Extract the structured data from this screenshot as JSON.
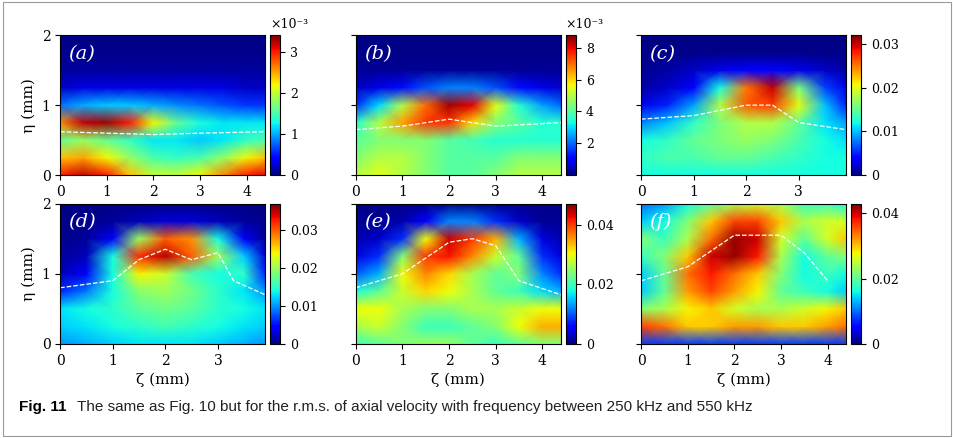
{
  "chart_data": [
    {
      "type": "heatmap",
      "panel": "(a)",
      "ylabel": "η (mm)",
      "x": [
        0,
        0.5,
        1,
        1.5,
        2,
        2.5,
        3,
        3.5,
        4,
        4.4
      ],
      "y": [
        0,
        0.25,
        0.5,
        0.75,
        1.0,
        1.25,
        1.5,
        1.75,
        2.0
      ],
      "cells": [
        [
          0.003,
          0.0032,
          0.003,
          0.0024,
          0.002,
          0.002,
          0.0022,
          0.0026,
          0.003,
          0.0031
        ],
        [
          0.0024,
          0.0025,
          0.0022,
          0.0018,
          0.0015,
          0.0014,
          0.0015,
          0.0018,
          0.0022,
          0.0024
        ],
        [
          0.0016,
          0.0018,
          0.0016,
          0.0014,
          0.0012,
          0.0012,
          0.0011,
          0.0012,
          0.0014,
          0.0015
        ],
        [
          0.0026,
          0.0032,
          0.0033,
          0.003,
          0.0022,
          0.0016,
          0.0013,
          0.0012,
          0.0012,
          0.0012
        ],
        [
          0.0008,
          0.001,
          0.0011,
          0.0011,
          0.001,
          0.0009,
          0.0008,
          0.0007,
          0.0006,
          0.0006
        ],
        [
          0.0002,
          0.0003,
          0.0003,
          0.0003,
          0.0003,
          0.0003,
          0.0003,
          0.0003,
          0.0002,
          0.0002
        ],
        [
          0.0001,
          0.0001,
          0.0001,
          0.0001,
          0.0001,
          0.0001,
          0.0001,
          0.0001,
          0.0001,
          0.0001
        ],
        [
          5e-05,
          5e-05,
          5e-05,
          5e-05,
          5e-05,
          5e-05,
          5e-05,
          5e-05,
          5e-05,
          5e-05
        ],
        [
          2e-05,
          2e-05,
          2e-05,
          2e-05,
          2e-05,
          2e-05,
          2e-05,
          2e-05,
          2e-05,
          2e-05
        ]
      ],
      "xlim": [
        0,
        4.4
      ],
      "ylim": [
        0,
        2
      ],
      "xticks": [
        0,
        1,
        2,
        3,
        4
      ],
      "yticks": [
        0,
        1,
        2
      ],
      "colorbar": {
        "lim": [
          0,
          0.0034
        ],
        "multiplier": "×10⁻³",
        "ticks": [
          {
            "value": 0,
            "label": "0"
          },
          {
            "value": 0.001,
            "label": "1"
          },
          {
            "value": 0.002,
            "label": "2"
          },
          {
            "value": 0.003,
            "label": "3"
          }
        ]
      },
      "contour": {
        "x": [
          0,
          1,
          2,
          3,
          4.4
        ],
        "y": [
          0.62,
          0.6,
          0.58,
          0.6,
          0.62
        ]
      }
    },
    {
      "type": "heatmap",
      "panel": "(b)",
      "tick_labels": "x",
      "x": [
        0,
        0.5,
        1,
        1.5,
        2,
        2.5,
        3,
        3.5,
        4,
        4.4
      ],
      "y": [
        0,
        0.25,
        0.5,
        0.75,
        1.0,
        1.25,
        1.5,
        1.75,
        2.0
      ],
      "cells": [
        [
          0.005,
          0.0055,
          0.005,
          0.0045,
          0.004,
          0.004,
          0.0045,
          0.005,
          0.005,
          0.005
        ],
        [
          0.0045,
          0.005,
          0.005,
          0.0045,
          0.004,
          0.004,
          0.004,
          0.0045,
          0.0045,
          0.0045
        ],
        [
          0.004,
          0.0045,
          0.0045,
          0.0045,
          0.004,
          0.0038,
          0.0035,
          0.0035,
          0.0035,
          0.0035
        ],
        [
          0.0035,
          0.005,
          0.0065,
          0.0075,
          0.0075,
          0.006,
          0.0045,
          0.004,
          0.0035,
          0.0035
        ],
        [
          0.0015,
          0.003,
          0.005,
          0.007,
          0.0085,
          0.008,
          0.0055,
          0.0035,
          0.0025,
          0.002
        ],
        [
          0.0005,
          0.0008,
          0.0012,
          0.0018,
          0.0022,
          0.0022,
          0.0018,
          0.0012,
          0.0008,
          0.0006
        ],
        [
          0.0002,
          0.0002,
          0.0002,
          0.0002,
          0.0002,
          0.0002,
          0.0002,
          0.0002,
          0.0002,
          0.0002
        ],
        [
          0.0001,
          0.0001,
          0.0001,
          0.0001,
          0.0001,
          0.0001,
          0.0001,
          0.0001,
          0.0001,
          0.0001
        ],
        [
          5e-05,
          5e-05,
          5e-05,
          5e-05,
          5e-05,
          5e-05,
          5e-05,
          5e-05,
          5e-05,
          5e-05
        ]
      ],
      "xlim": [
        0,
        4.4
      ],
      "ylim": [
        0,
        2
      ],
      "xticks": [
        0,
        1,
        2,
        3,
        4
      ],
      "yticks": [
        0,
        1,
        2
      ],
      "colorbar": {
        "lim": [
          0,
          0.0088
        ],
        "multiplier": "×10⁻³",
        "ticks": [
          {
            "value": 0.002,
            "label": "2"
          },
          {
            "value": 0.004,
            "label": "4"
          },
          {
            "value": 0.006,
            "label": "6"
          },
          {
            "value": 0.008,
            "label": "8"
          }
        ]
      },
      "contour": {
        "x": [
          0,
          1,
          2,
          3,
          4.4
        ],
        "y": [
          0.65,
          0.7,
          0.8,
          0.7,
          0.75
        ]
      }
    },
    {
      "type": "heatmap",
      "panel": "(c)",
      "tick_labels": "x",
      "x": [
        0,
        0.5,
        1,
        1.5,
        2,
        2.5,
        3,
        3.5,
        3.9
      ],
      "y": [
        0,
        0.25,
        0.5,
        0.75,
        1.0,
        1.25,
        1.5,
        1.75,
        2.0
      ],
      "cells": [
        [
          0.012,
          0.012,
          0.012,
          0.012,
          0.012,
          0.012,
          0.012,
          0.012,
          0.012
        ],
        [
          0.013,
          0.014,
          0.014,
          0.015,
          0.015,
          0.014,
          0.013,
          0.012,
          0.012
        ],
        [
          0.012,
          0.013,
          0.015,
          0.016,
          0.017,
          0.016,
          0.014,
          0.012,
          0.011
        ],
        [
          0.008,
          0.01,
          0.013,
          0.016,
          0.018,
          0.018,
          0.015,
          0.011,
          0.009
        ],
        [
          0.003,
          0.005,
          0.009,
          0.018,
          0.026,
          0.027,
          0.02,
          0.01,
          0.005
        ],
        [
          0.001,
          0.002,
          0.004,
          0.012,
          0.025,
          0.03,
          0.016,
          0.006,
          0.003
        ],
        [
          0.0005,
          0.001,
          0.002,
          0.003,
          0.004,
          0.004,
          0.003,
          0.002,
          0.001
        ],
        [
          0.0003,
          0.0003,
          0.0003,
          0.0003,
          0.0003,
          0.0003,
          0.0003,
          0.0003,
          0.0003
        ],
        [
          0.0002,
          0.0002,
          0.0002,
          0.0002,
          0.0002,
          0.0002,
          0.0002,
          0.0002,
          0.0002
        ]
      ],
      "xlim": [
        0,
        3.9
      ],
      "ylim": [
        0,
        2
      ],
      "xticks": [
        0,
        1,
        2,
        3
      ],
      "yticks": [
        0,
        1,
        2
      ],
      "colorbar": {
        "lim": [
          0,
          0.032
        ],
        "ticks": [
          0,
          0.01,
          0.02,
          0.03
        ]
      },
      "contour": {
        "x": [
          0,
          1,
          2,
          2.5,
          3,
          3.9
        ],
        "y": [
          0.8,
          0.85,
          1.0,
          1.0,
          0.75,
          0.65
        ]
      }
    },
    {
      "type": "heatmap",
      "panel": "(d)",
      "xlabel": "ζ (mm)",
      "ylabel": "η (mm)",
      "x": [
        0,
        0.5,
        1,
        1.5,
        2,
        2.5,
        3,
        3.5,
        3.9
      ],
      "y": [
        0,
        0.25,
        0.5,
        0.75,
        1.0,
        1.25,
        1.5,
        1.75,
        2.0
      ],
      "cells": [
        [
          0.01,
          0.011,
          0.012,
          0.013,
          0.013,
          0.013,
          0.012,
          0.011,
          0.01
        ],
        [
          0.012,
          0.013,
          0.014,
          0.015,
          0.016,
          0.015,
          0.014,
          0.013,
          0.012
        ],
        [
          0.013,
          0.014,
          0.015,
          0.017,
          0.018,
          0.017,
          0.015,
          0.014,
          0.013
        ],
        [
          0.006,
          0.009,
          0.014,
          0.019,
          0.02,
          0.018,
          0.015,
          0.013,
          0.01
        ],
        [
          0.002,
          0.004,
          0.014,
          0.024,
          0.022,
          0.016,
          0.014,
          0.015,
          0.006
        ],
        [
          0.001,
          0.002,
          0.014,
          0.032,
          0.035,
          0.03,
          0.02,
          0.012,
          0.003
        ],
        [
          0.0005,
          0.001,
          0.004,
          0.02,
          0.03,
          0.028,
          0.014,
          0.004,
          0.001
        ],
        [
          0.0003,
          0.0005,
          0.001,
          0.002,
          0.003,
          0.003,
          0.002,
          0.001,
          0.0005
        ],
        [
          0.0002,
          0.0002,
          0.0002,
          0.0002,
          0.0002,
          0.0002,
          0.0002,
          0.0002,
          0.0002
        ]
      ],
      "xlim": [
        0,
        3.9
      ],
      "ylim": [
        0,
        2
      ],
      "xticks": [
        0,
        1,
        2,
        3
      ],
      "yticks": [
        0,
        1,
        2
      ],
      "colorbar": {
        "lim": [
          0,
          0.037
        ],
        "ticks": [
          0,
          0.01,
          0.02,
          0.03
        ]
      },
      "contour": {
        "x": [
          0,
          1,
          1.5,
          2,
          2.5,
          3,
          3.3,
          3.9
        ],
        "y": [
          0.8,
          0.9,
          1.2,
          1.35,
          1.2,
          1.3,
          0.9,
          0.7
        ]
      }
    },
    {
      "type": "heatmap",
      "panel": "(e)",
      "xlabel": "ζ (mm)",
      "tick_labels": "x",
      "x": [
        0,
        0.5,
        1,
        1.5,
        2,
        2.5,
        3,
        3.5,
        4,
        4.4
      ],
      "y": [
        0,
        0.25,
        0.5,
        0.75,
        1.0,
        1.25,
        1.5,
        1.75,
        2.0
      ],
      "cells": [
        [
          0.02,
          0.022,
          0.024,
          0.025,
          0.025,
          0.022,
          0.02,
          0.022,
          0.024,
          0.024
        ],
        [
          0.026,
          0.028,
          0.024,
          0.02,
          0.02,
          0.022,
          0.024,
          0.03,
          0.034,
          0.034
        ],
        [
          0.03,
          0.03,
          0.026,
          0.024,
          0.024,
          0.026,
          0.026,
          0.028,
          0.03,
          0.03
        ],
        [
          0.018,
          0.022,
          0.028,
          0.032,
          0.03,
          0.026,
          0.022,
          0.02,
          0.016,
          0.014
        ],
        [
          0.01,
          0.014,
          0.03,
          0.036,
          0.032,
          0.026,
          0.022,
          0.024,
          0.012,
          0.008
        ],
        [
          0.004,
          0.008,
          0.024,
          0.04,
          0.042,
          0.036,
          0.028,
          0.022,
          0.008,
          0.004
        ],
        [
          0.002,
          0.003,
          0.008,
          0.03,
          0.044,
          0.04,
          0.034,
          0.014,
          0.004,
          0.002
        ],
        [
          0.001,
          0.001,
          0.002,
          0.006,
          0.012,
          0.012,
          0.008,
          0.003,
          0.001,
          0.001
        ],
        [
          0.0005,
          0.0005,
          0.0005,
          0.0005,
          0.0005,
          0.0005,
          0.0005,
          0.0005,
          0.0005,
          0.0005
        ]
      ],
      "xlim": [
        0,
        4.4
      ],
      "ylim": [
        0,
        2
      ],
      "xticks": [
        0,
        1,
        2,
        3,
        4
      ],
      "yticks": [
        0,
        1,
        2
      ],
      "colorbar": {
        "lim": [
          0,
          0.047
        ],
        "ticks": [
          0,
          0.02,
          0.04
        ]
      },
      "contour": {
        "x": [
          0,
          1,
          2,
          2.5,
          3,
          3.5,
          4.4
        ],
        "y": [
          0.8,
          1.0,
          1.45,
          1.5,
          1.4,
          0.9,
          0.7
        ]
      }
    },
    {
      "type": "heatmap",
      "panel": "(f)",
      "xlabel": "ζ (mm)",
      "tick_labels": "x",
      "x": [
        0,
        0.5,
        1,
        1.5,
        2,
        2.5,
        3,
        3.5,
        4,
        4.4
      ],
      "y": [
        0,
        0.25,
        0.5,
        0.75,
        1.0,
        1.25,
        1.5,
        1.75,
        2.0
      ],
      "cells": [
        [
          0.008,
          0.008,
          0.008,
          0.008,
          0.008,
          0.008,
          0.008,
          0.008,
          0.008,
          0.008
        ],
        [
          0.036,
          0.034,
          0.03,
          0.03,
          0.032,
          0.032,
          0.03,
          0.03,
          0.032,
          0.034
        ],
        [
          0.022,
          0.024,
          0.028,
          0.03,
          0.026,
          0.024,
          0.024,
          0.026,
          0.028,
          0.03
        ],
        [
          0.014,
          0.02,
          0.032,
          0.036,
          0.032,
          0.028,
          0.02,
          0.018,
          0.016,
          0.014
        ],
        [
          0.014,
          0.02,
          0.034,
          0.038,
          0.034,
          0.03,
          0.022,
          0.016,
          0.018,
          0.016
        ],
        [
          0.018,
          0.022,
          0.03,
          0.04,
          0.042,
          0.038,
          0.024,
          0.016,
          0.02,
          0.022
        ],
        [
          0.022,
          0.018,
          0.024,
          0.034,
          0.042,
          0.04,
          0.026,
          0.02,
          0.026,
          0.03
        ],
        [
          0.014,
          0.016,
          0.022,
          0.03,
          0.036,
          0.036,
          0.03,
          0.024,
          0.026,
          0.026
        ],
        [
          0.01,
          0.012,
          0.016,
          0.02,
          0.024,
          0.026,
          0.024,
          0.018,
          0.018,
          0.016
        ]
      ],
      "xlim": [
        0,
        4.4
      ],
      "ylim": [
        0,
        2
      ],
      "xticks": [
        0,
        1,
        2,
        3,
        4
      ],
      "yticks": [
        0,
        1,
        2
      ],
      "colorbar": {
        "lim": [
          0,
          0.043
        ],
        "ticks": [
          0,
          0.02,
          0.04
        ]
      },
      "contour": {
        "x": [
          0,
          1,
          2,
          3,
          3.5,
          4
        ],
        "y": [
          0.9,
          1.1,
          1.55,
          1.55,
          1.3,
          0.9
        ]
      }
    }
  ],
  "caption": {
    "label": "Fig. 11",
    "text": "The same as Fig. 10 but for the r.m.s. of axial velocity with frequency between 250 kHz and 550 kHz"
  }
}
